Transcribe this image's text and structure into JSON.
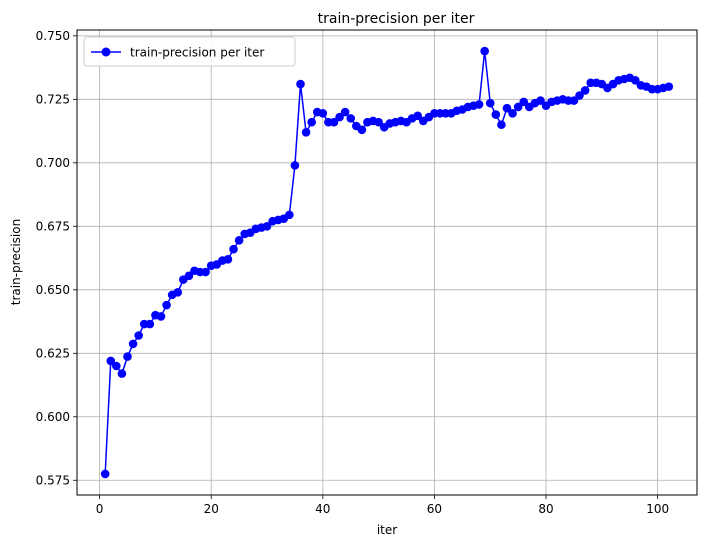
{
  "chart_data": {
    "type": "line",
    "title": "train-precision per iter",
    "xlabel": "iter",
    "ylabel": "train-precision",
    "xlim": [
      -4.05,
      107.05
    ],
    "ylim": [
      0.5692,
      0.7523
    ],
    "xticks": [
      0,
      20,
      40,
      60,
      80,
      100
    ],
    "yticks": [
      0.575,
      0.6,
      0.625,
      0.65,
      0.675,
      0.7,
      0.725,
      0.75
    ],
    "ytick_labels": [
      "0.575",
      "0.600",
      "0.625",
      "0.650",
      "0.675",
      "0.700",
      "0.725",
      "0.750"
    ],
    "grid": true,
    "legend_position": "top-left",
    "series": [
      {
        "name": "train-precision per iter",
        "color": "#0000ff",
        "marker": "circle",
        "x": [
          1,
          2,
          3,
          4,
          5,
          6,
          7,
          8,
          9,
          10,
          11,
          12,
          13,
          14,
          15,
          16,
          17,
          18,
          19,
          20,
          21,
          22,
          23,
          24,
          25,
          26,
          27,
          28,
          29,
          30,
          31,
          32,
          33,
          34,
          35,
          36,
          37,
          38,
          39,
          40,
          41,
          42,
          43,
          44,
          45,
          46,
          47,
          48,
          49,
          50,
          51,
          52,
          53,
          54,
          55,
          56,
          57,
          58,
          59,
          60,
          61,
          62,
          63,
          64,
          65,
          66,
          67,
          68,
          69,
          70,
          71,
          72,
          73,
          74,
          75,
          76,
          77,
          78,
          79,
          80,
          81,
          82,
          83,
          84,
          85,
          86,
          87,
          88,
          89,
          90,
          91,
          92,
          93,
          94,
          95,
          96,
          97,
          98,
          99,
          100,
          101,
          102
        ],
        "values": [
          0.5775,
          0.622,
          0.62,
          0.617,
          0.6237,
          0.6287,
          0.632,
          0.6365,
          0.6365,
          0.64,
          0.6395,
          0.644,
          0.648,
          0.649,
          0.654,
          0.6555,
          0.6575,
          0.657,
          0.657,
          0.6595,
          0.66,
          0.6615,
          0.662,
          0.666,
          0.6695,
          0.672,
          0.6725,
          0.674,
          0.6745,
          0.675,
          0.677,
          0.6775,
          0.678,
          0.6795,
          0.699,
          0.731,
          0.712,
          0.716,
          0.72,
          0.7195,
          0.716,
          0.716,
          0.718,
          0.72,
          0.7175,
          0.7145,
          0.713,
          0.716,
          0.7165,
          0.716,
          0.714,
          0.7155,
          0.716,
          0.7165,
          0.716,
          0.7175,
          0.7185,
          0.7165,
          0.718,
          0.7195,
          0.7195,
          0.7195,
          0.7195,
          0.7205,
          0.721,
          0.722,
          0.7225,
          0.723,
          0.744,
          0.7235,
          0.719,
          0.715,
          0.7215,
          0.7195,
          0.722,
          0.724,
          0.722,
          0.7235,
          0.7245,
          0.7225,
          0.724,
          0.7245,
          0.725,
          0.7245,
          0.7245,
          0.7265,
          0.7285,
          0.7315,
          0.7315,
          0.731,
          0.7295,
          0.731,
          0.7325,
          0.733,
          0.7335,
          0.7325,
          0.7305,
          0.73,
          0.729,
          0.729,
          0.7295,
          0.73
        ]
      }
    ]
  }
}
